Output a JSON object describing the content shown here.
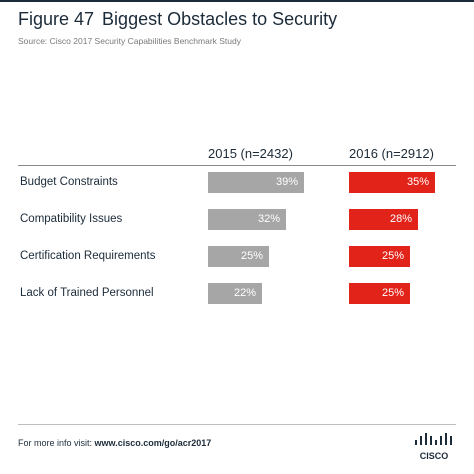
{
  "figure": {
    "number": "Figure 47",
    "title": "Biggest Obstacles to Security",
    "source": "Source: Cisco 2017 Security Capabilities Benchmark Study"
  },
  "chart_data": {
    "type": "bar",
    "orientation": "horizontal",
    "categories": [
      "Budget Constraints",
      "Compatibility Issues",
      "Certification Requirements",
      "Lack of Trained Personnel"
    ],
    "series": [
      {
        "name": "2015 (n=2432)",
        "values": [
          39,
          32,
          25,
          22
        ],
        "labels": [
          "39%",
          "32%",
          "25%",
          "22%"
        ],
        "color": "#a6a6a6"
      },
      {
        "name": "2016 (n=2912)",
        "values": [
          35,
          28,
          25,
          25
        ],
        "labels": [
          "35%",
          "28%",
          "25%",
          "25%"
        ],
        "color": "#e2231a"
      }
    ],
    "unit": "%"
  },
  "footer": {
    "prefix": "For more info visit: ",
    "link": "www.cisco.com/go/acr2017"
  },
  "logo": {
    "text": "CISCO",
    "icon": "cisco-bridge-icon"
  }
}
